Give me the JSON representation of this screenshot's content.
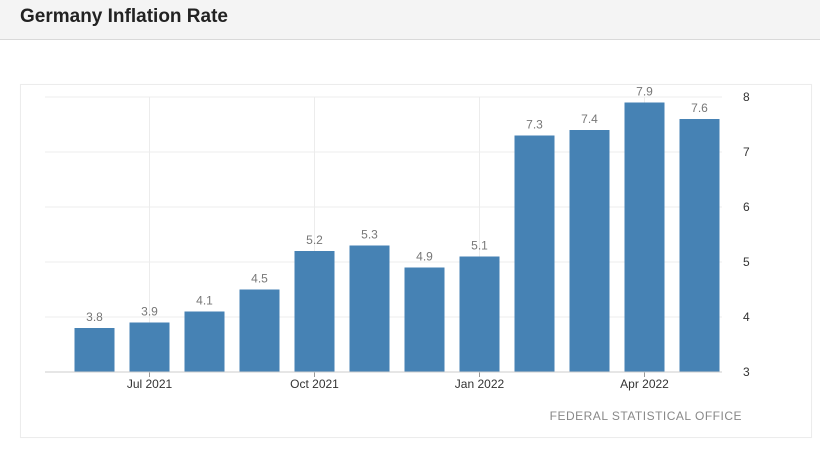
{
  "page": {
    "title": "Germany Inflation Rate"
  },
  "source": "FEDERAL STATISTICAL OFFICE",
  "colors": {
    "bar": "#4682b4",
    "label": "#777777",
    "tick": "#333333",
    "grid": "#ececec"
  },
  "chart_data": {
    "type": "bar",
    "categories": [
      "Jun 2021",
      "Jul 2021",
      "Aug 2021",
      "Sep 2021",
      "Oct 2021",
      "Nov 2021",
      "Dec 2021",
      "Jan 2022",
      "Feb 2022",
      "Mar 2022",
      "Apr 2022",
      "May 2022"
    ],
    "values": [
      3.8,
      3.9,
      4.1,
      4.5,
      5.2,
      5.3,
      4.9,
      5.1,
      7.3,
      7.4,
      7.9,
      7.6
    ],
    "data_labels": [
      "3.8",
      "3.9",
      "4.1",
      "4.5",
      "5.2",
      "5.3",
      "4.9",
      "5.1",
      "7.3",
      "7.4",
      "7.9",
      "7.6"
    ],
    "x_tick_labels": [
      "Jul 2021",
      "Oct 2021",
      "Jan 2022",
      "Apr 2022"
    ],
    "y_ticks": [
      3,
      4,
      5,
      6,
      7,
      8
    ],
    "ylim": [
      3,
      8
    ],
    "y_axis_side": "right",
    "grid": true
  }
}
